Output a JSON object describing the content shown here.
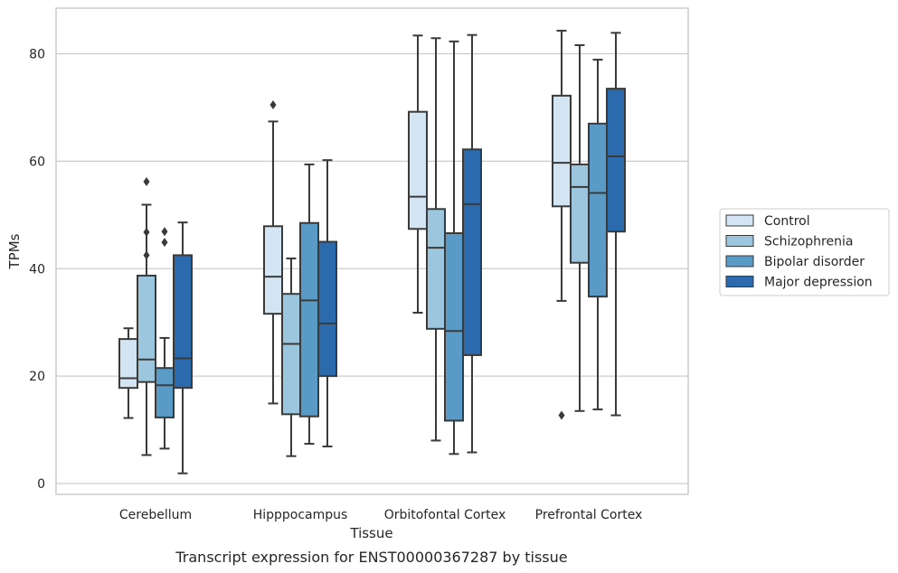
{
  "chart_data": {
    "type": "box",
    "title": "",
    "caption": "Transcript expression for ENST00000367287 by tissue",
    "xlabel": "Tissue",
    "ylabel": "TPMs",
    "ylim": [
      -2,
      88
    ],
    "yticks": [
      0,
      20,
      40,
      60,
      80
    ],
    "grid": "horizontal",
    "legend_position": "right",
    "categories": [
      "Cerebellum",
      "Hipppocampus",
      "Orbitofontal Cortex",
      "Prefrontal Cortex"
    ],
    "series": [
      {
        "name": "Control",
        "color": "#d3e4f3",
        "boxes": [
          {
            "whislo": 12.2,
            "q1": 17.8,
            "med": 19.6,
            "q3": 26.9,
            "whishi": 28.9,
            "fliers": []
          },
          {
            "whislo": 14.9,
            "q1": 31.6,
            "med": 38.5,
            "q3": 47.9,
            "whishi": 67.4,
            "fliers": [
              70.5
            ]
          },
          {
            "whislo": 31.8,
            "q1": 47.4,
            "med": 53.4,
            "q3": 69.2,
            "whishi": 83.4,
            "fliers": []
          },
          {
            "whislo": 34.0,
            "q1": 51.6,
            "med": 59.7,
            "q3": 72.2,
            "whishi": 84.3,
            "fliers": [
              12.7
            ]
          }
        ]
      },
      {
        "name": "Schizophrenia",
        "color": "#9cc6de",
        "boxes": [
          {
            "whislo": 5.3,
            "q1": 18.9,
            "med": 23.1,
            "q3": 38.7,
            "whishi": 51.9,
            "fliers": [
              56.2,
              46.8,
              42.5
            ]
          },
          {
            "whislo": 5.1,
            "q1": 12.9,
            "med": 26.0,
            "q3": 35.3,
            "whishi": 41.9,
            "fliers": []
          },
          {
            "whislo": 8.0,
            "q1": 28.8,
            "med": 43.9,
            "q3": 51.1,
            "whishi": 82.9,
            "fliers": []
          },
          {
            "whislo": 13.5,
            "q1": 41.1,
            "med": 55.2,
            "q3": 59.4,
            "whishi": 81.6,
            "fliers": []
          }
        ]
      },
      {
        "name": "Bipolar disorder",
        "color": "#5a9ac6",
        "boxes": [
          {
            "whislo": 6.5,
            "q1": 12.3,
            "med": 18.3,
            "q3": 21.5,
            "whishi": 27.1,
            "fliers": [
              46.9,
              44.9
            ]
          },
          {
            "whislo": 7.4,
            "q1": 12.5,
            "med": 34.1,
            "q3": 48.5,
            "whishi": 59.4,
            "fliers": []
          },
          {
            "whislo": 5.5,
            "q1": 11.7,
            "med": 28.4,
            "q3": 46.6,
            "whishi": 82.3,
            "fliers": []
          },
          {
            "whislo": 13.8,
            "q1": 34.8,
            "med": 54.1,
            "q3": 67.0,
            "whishi": 78.9,
            "fliers": []
          }
        ]
      },
      {
        "name": "Major depression",
        "color": "#2a6aad",
        "boxes": [
          {
            "whislo": 1.9,
            "q1": 17.8,
            "med": 23.3,
            "q3": 42.5,
            "whishi": 48.6,
            "fliers": []
          },
          {
            "whislo": 6.9,
            "q1": 20.0,
            "med": 29.8,
            "q3": 45.0,
            "whishi": 60.2,
            "fliers": []
          },
          {
            "whislo": 5.8,
            "q1": 23.9,
            "med": 52.0,
            "q3": 62.2,
            "whishi": 83.5,
            "fliers": []
          },
          {
            "whislo": 12.7,
            "q1": 46.9,
            "med": 60.9,
            "q3": 73.5,
            "whishi": 83.9,
            "fliers": []
          }
        ]
      }
    ]
  }
}
